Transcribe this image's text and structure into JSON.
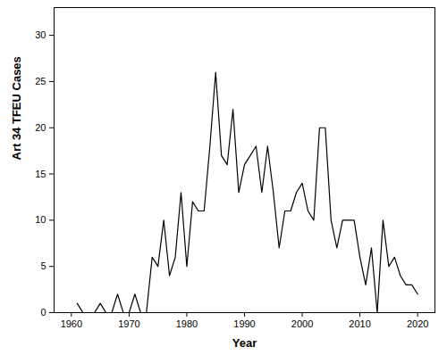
{
  "chart_data": {
    "type": "line",
    "x_label": "Year",
    "y_label": "Art 34 TFEU Cases",
    "x": [
      1961,
      1962,
      1963,
      1964,
      1965,
      1966,
      1967,
      1968,
      1969,
      1970,
      1971,
      1972,
      1973,
      1974,
      1975,
      1976,
      1977,
      1978,
      1979,
      1980,
      1981,
      1982,
      1983,
      1984,
      1985,
      1986,
      1987,
      1988,
      1989,
      1990,
      1991,
      1992,
      1993,
      1994,
      1995,
      1996,
      1997,
      1998,
      1999,
      2000,
      2001,
      2002,
      2003,
      2004,
      2005,
      2006,
      2007,
      2008,
      2009,
      2010,
      2011,
      2012,
      2013,
      2014,
      2015,
      2016,
      2017,
      2018,
      2019,
      2020
    ],
    "values": [
      1,
      0,
      0,
      0,
      1,
      0,
      0,
      2,
      0,
      0,
      2,
      0,
      0,
      6,
      5,
      10,
      4,
      6,
      13,
      5,
      12,
      11,
      11,
      18,
      26,
      17,
      16,
      22,
      13,
      16,
      17,
      18,
      13,
      18,
      13,
      7,
      11,
      11,
      13,
      14,
      11,
      10,
      20,
      20,
      10,
      7,
      10,
      10,
      10,
      6,
      3,
      7,
      0,
      10,
      5,
      6,
      4,
      3,
      3,
      2
    ],
    "color": "#000000",
    "xlim": [
      1957,
      2023
    ],
    "xticks": [
      1960,
      1970,
      1980,
      1990,
      2000,
      2010,
      2020
    ],
    "ylim": [
      0,
      33
    ],
    "yticks": [
      0,
      5,
      10,
      15,
      20,
      25,
      30
    ],
    "grid": false
  }
}
